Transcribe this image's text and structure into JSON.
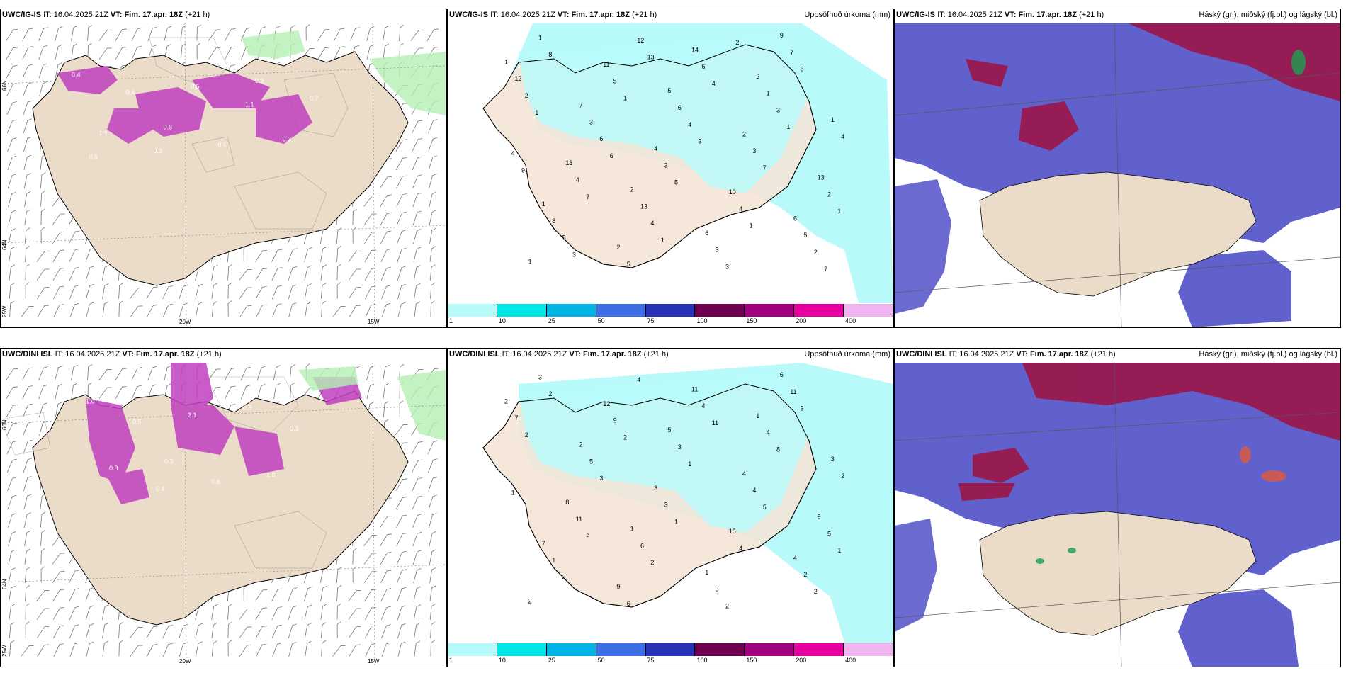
{
  "panels": [
    {
      "model": "UWC/IG-IS",
      "it_label": "IT:",
      "it_value": "16.04.2025 21Z",
      "vt_label": "VT:",
      "vt_value": "Fim. 17.apr. 18Z",
      "lead": "(+21 h)",
      "right_title": ""
    },
    {
      "model": "UWC/IG-IS",
      "it_label": "IT:",
      "it_value": "16.04.2025 21Z",
      "vt_label": "VT:",
      "vt_value": "Fim. 17.apr. 18Z",
      "lead": "(+21 h)",
      "right_title": "Uppsöfnuð úrkoma (mm)"
    },
    {
      "model": "UWC/IG-IS",
      "it_label": "IT:",
      "it_value": "16.04.2025 21Z",
      "vt_label": "VT:",
      "vt_value": "Fim. 17.apr. 18Z",
      "lead": "(+21 h)",
      "right_title": "Háský (gr.), miðský (fj.bl.) og lágský (bl.)"
    },
    {
      "model": "UWC/DINI ISL",
      "it_label": "IT:",
      "it_value": "16.04.2025 21Z",
      "vt_label": "VT:",
      "vt_value": "Fim. 17.apr. 18Z",
      "lead": "(+21 h)",
      "right_title": ""
    },
    {
      "model": "UWC/DINI ISL",
      "it_label": "IT:",
      "it_value": "16.04.2025 21Z",
      "vt_label": "VT:",
      "vt_value": "Fim. 17.apr. 18Z",
      "lead": "(+21 h)",
      "right_title": "Uppsöfnuð úrkoma (mm)"
    },
    {
      "model": "UWC/DINI ISL",
      "it_label": "IT:",
      "it_value": "16.04.2025 21Z",
      "vt_label": "VT:",
      "vt_value": "Fim. 17.apr. 18Z",
      "lead": "(+21 h)",
      "right_title": "Háský (gr.), miðský (fj.bl.) og lágský (bl.)"
    }
  ],
  "map_labels": {
    "lat_66": "66N",
    "lat_64": "64N",
    "lon_25": "25W",
    "lon_20": "20W",
    "lon_15": "15W"
  },
  "colorbar": {
    "ticks": [
      "1",
      "10",
      "25",
      "50",
      "75",
      "100",
      "150",
      "200",
      "400"
    ],
    "colors": [
      "#b8fafa",
      "#00e6e6",
      "#00b4e6",
      "#3c6ee6",
      "#2832b4",
      "#6e0050",
      "#a00080",
      "#e600a0",
      "#f0b4f0"
    ]
  },
  "precip_top": [
    "1",
    "2",
    "2",
    "1",
    "5",
    "6",
    "7",
    "6",
    "1",
    "2",
    "2",
    "1",
    "4",
    "9",
    "13",
    "14",
    "13",
    "11",
    "10",
    "12",
    "13",
    "1",
    "8",
    "6",
    "5",
    "3",
    "3",
    "4",
    "5",
    "3",
    "1",
    "3",
    "7",
    "4",
    "6",
    "2",
    "5",
    "4",
    "2",
    "4",
    "3",
    "5",
    "4",
    "2",
    "6",
    "3",
    "4",
    "12",
    "7",
    "8",
    "5",
    "6",
    "7",
    "4",
    "1",
    "1",
    "1",
    "1",
    "1",
    "1",
    "3",
    "3",
    "7",
    "6",
    "2",
    "9",
    "13"
  ],
  "precip_bottom": [
    "2",
    "1",
    "1",
    "7",
    "5",
    "4",
    "2",
    "1",
    "3",
    "9",
    "4",
    "2",
    "3",
    "6",
    "8",
    "11",
    "9",
    "12",
    "15",
    "7",
    "6",
    "4",
    "1",
    "3",
    "2",
    "5",
    "3",
    "2",
    "6",
    "4",
    "3",
    "3",
    "11",
    "11",
    "4",
    "5",
    "9",
    "4",
    "2",
    "2",
    "8",
    "3",
    "1",
    "2",
    "3",
    "2",
    "1",
    "4",
    "5",
    "2",
    "1",
    "3",
    "2",
    "11",
    "1",
    "2"
  ],
  "wind_values_top": [
    "0.4",
    "0.6",
    "0.3",
    "1.1",
    "0.5",
    "0.3",
    "0.4",
    "0.6",
    "0.7",
    "0.3",
    "1.1",
    "0.5"
  ],
  "wind_values_bottom": [
    "1.0",
    "0.3",
    "0.6",
    "0.8",
    "2.1",
    "1.8",
    "0.5",
    "0.6",
    "0.3",
    "0.4"
  ]
}
